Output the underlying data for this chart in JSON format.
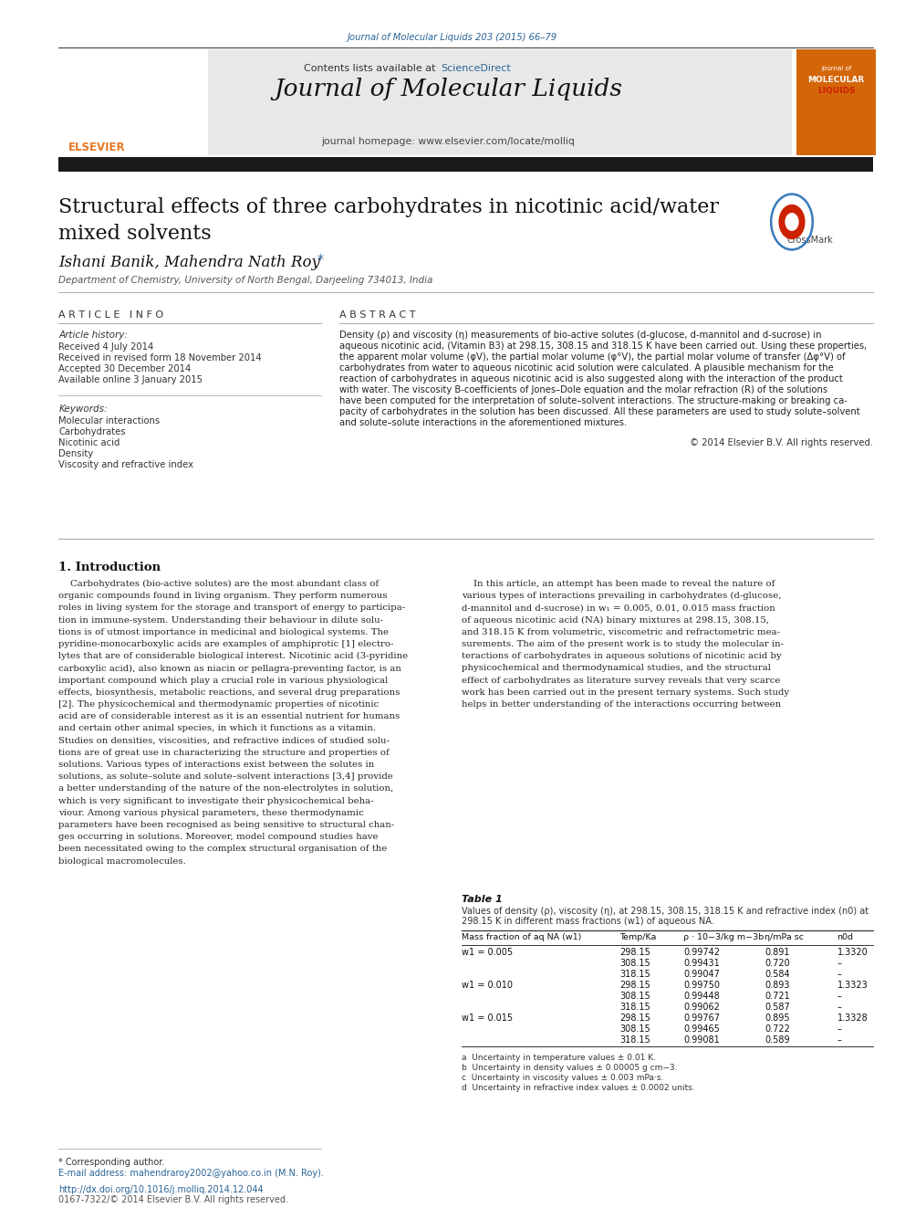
{
  "page_width": 9.92,
  "page_height": 13.23,
  "bg_color": "#ffffff",
  "header_ref": "Journal of Molecular Liquids 203 (2015) 66–79",
  "header_ref_color": "#2a6496",
  "journal_banner_bg": "#e8e8e8",
  "sciencedirect_color": "#2a6496",
  "journal_title": "Journal of Molecular Liquids",
  "journal_homepage": "journal homepage: www.elsevier.com/locate/molliq",
  "orange_box_color": "#d4660a",
  "article_title_line1": "Structural effects of three carbohydrates in nicotinic acid/water",
  "article_title_line2": "mixed solvents",
  "authors": "Ishani Banik, Mahendra Nath Roy",
  "affiliation": "Department of Chemistry, University of North Bengal, Darjeeling 734013, India",
  "article_info_header": "A R T I C L E   I N F O",
  "abstract_header": "A B S T R A C T",
  "article_history_label": "Article history:",
  "received_date": "Received 4 July 2014",
  "revised_date": "Received in revised form 18 November 2014",
  "accepted_date": "Accepted 30 December 2014",
  "available_date": "Available online 3 January 2015",
  "keywords_label": "Keywords:",
  "keywords": [
    "Molecular interactions",
    "Carbohydrates",
    "Nicotinic acid",
    "Density",
    "Viscosity and refractive index"
  ],
  "abstract_text_lines": [
    "Density (ρ) and viscosity (η) measurements of bio-active solutes (d-glucose, d-mannitol and d-sucrose) in",
    "aqueous nicotinic acid, (Vitamin B3) at 298.15, 308.15 and 318.15 K have been carried out. Using these properties,",
    "the apparent molar volume (φV), the partial molar volume (φ°V), the partial molar volume of transfer (Δφ°V) of",
    "carbohydrates from water to aqueous nicotinic acid solution were calculated. A plausible mechanism for the",
    "reaction of carbohydrates in aqueous nicotinic acid is also suggested along with the interaction of the product",
    "with water. The viscosity B-coefficients of Jones–Dole equation and the molar refraction (R) of the solutions",
    "have been computed for the interpretation of solute–solvent interactions. The structure-making or breaking ca-",
    "pacity of carbohydrates in the solution has been discussed. All these parameters are used to study solute–solvent",
    "and solute–solute interactions in the aforementioned mixtures."
  ],
  "copyright": "© 2014 Elsevier B.V. All rights reserved.",
  "intro_header": "1. Introduction",
  "intro_col1_lines": [
    "    Carbohydrates (bio-active solutes) are the most abundant class of",
    "organic compounds found in living organism. They perform numerous",
    "roles in living system for the storage and transport of energy to participa-",
    "tion in immune-system. Understanding their behaviour in dilute solu-",
    "tions is of utmost importance in medicinal and biological systems. The",
    "pyridine-monocarboxylic acids are examples of amphiprotic [1] electro-",
    "lytes that are of considerable biological interest. Nicotinic acid (3-pyridine",
    "carboxylic acid), also known as niacin or pellagra-preventing factor, is an",
    "important compound which play a crucial role in various physiological",
    "effects, biosynthesis, metabolic reactions, and several drug preparations",
    "[2]. The physicochemical and thermodynamic properties of nicotinic",
    "acid are of considerable interest as it is an essential nutrient for humans",
    "and certain other animal species, in which it functions as a vitamin.",
    "Studies on densities, viscosities, and refractive indices of studied solu-",
    "tions are of great use in characterizing the structure and properties of",
    "solutions. Various types of interactions exist between the solutes in",
    "solutions, as solute–solute and solute–solvent interactions [3,4] provide",
    "a better understanding of the nature of the non-electrolytes in solution,",
    "which is very significant to investigate their physicochemical beha-",
    "viour. Among various physical parameters, these thermodynamic",
    "parameters have been recognised as being sensitive to structural chan-",
    "ges occurring in solutions. Moreover, model compound studies have",
    "been necessitated owing to the complex structural organisation of the",
    "biological macromolecules."
  ],
  "intro_col2_lines": [
    "    In this article, an attempt has been made to reveal the nature of",
    "various types of interactions prevailing in carbohydrates (d-glucose,",
    "d-mannitol and d-sucrose) in w₁ = 0.005, 0.01, 0.015 mass fraction",
    "of aqueous nicotinic acid (NA) binary mixtures at 298.15, 308.15,",
    "and 318.15 K from volumetric, viscometric and refractometric mea-",
    "surements. The aim of the present work is to study the molecular in-",
    "teractions of carbohydrates in aqueous solutions of nicotinic acid by",
    "physicochemical and thermodynamical studies, and the structural",
    "effect of carbohydrates as literature survey reveals that very scarce",
    "work has been carried out in the present ternary systems. Such study",
    "helps in better understanding of the interactions occurring between"
  ],
  "table1_title": "Table 1",
  "table1_caption_lines": [
    "Values of density (ρ), viscosity (η), at 298.15, 308.15, 318.15 K and refractive index (n0) at",
    "298.15 K in different mass fractions (w1) of aqueous NA."
  ],
  "table1_col_headers": [
    "Mass fraction of aq NA (w1)",
    "Temp/Ka",
    "ρ · 10−3/kg m−3b",
    "η/mPa sc",
    "n0d"
  ],
  "table1_data": [
    [
      "w1 = 0.005",
      "298.15",
      "0.99742",
      "0.891",
      "1.3320"
    ],
    [
      "",
      "308.15",
      "0.99431",
      "0.720",
      "–"
    ],
    [
      "",
      "318.15",
      "0.99047",
      "0.584",
      "–"
    ],
    [
      "w1 = 0.010",
      "298.15",
      "0.99750",
      "0.893",
      "1.3323"
    ],
    [
      "",
      "308.15",
      "0.99448",
      "0.721",
      "–"
    ],
    [
      "",
      "318.15",
      "0.99062",
      "0.587",
      "–"
    ],
    [
      "w1 = 0.015",
      "298.15",
      "0.99767",
      "0.895",
      "1.3328"
    ],
    [
      "",
      "308.15",
      "0.99465",
      "0.722",
      "–"
    ],
    [
      "",
      "318.15",
      "0.99081",
      "0.589",
      "–"
    ]
  ],
  "table_footnotes": [
    "a  Uncertainty in temperature values ± 0.01 K.",
    "b  Uncertainty in density values ± 0.00005 g cm−3.",
    "c  Uncertainty in viscosity values ± 0.003 mPa·s.",
    "d  Uncertainty in refractive index values ± 0.0002 units."
  ],
  "corresponding_author_note": "* Corresponding author.",
  "email_note": "E-mail address: mahendraroy2002@yahoo.co.in (M.N. Roy).",
  "doi_note": "http://dx.doi.org/10.1016/j.molliq.2014.12.044",
  "rights_note": "0167-7322/© 2014 Elsevier B.V. All rights reserved.",
  "black_bar_color": "#1a1a1a",
  "separator_color": "#aaaaaa",
  "dark_separator_color": "#444444"
}
